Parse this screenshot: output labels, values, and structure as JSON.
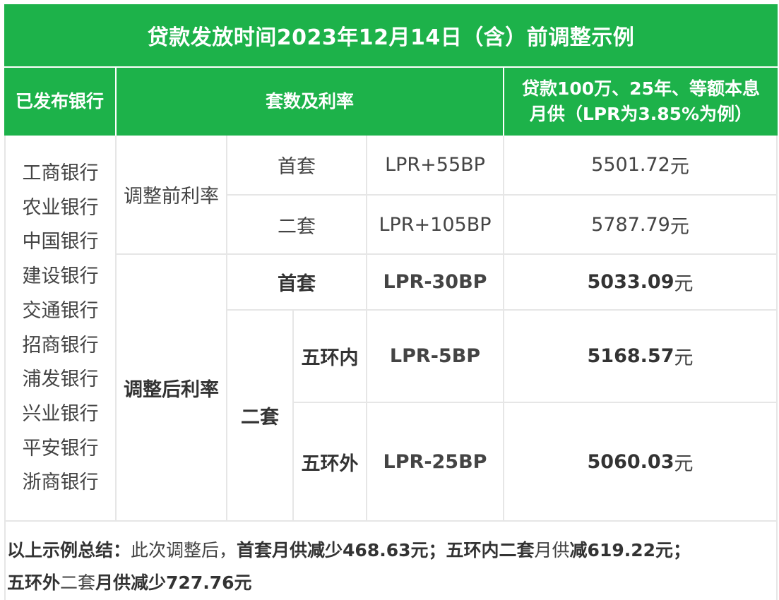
{
  "table": {
    "title": "贷款发放时间2023年12月14日（含）前调整示例",
    "headers": {
      "banks": "已发布银行",
      "rate": "套数及利率",
      "payment_line1": "贷款100万、25年、等额本息",
      "payment_line2": "月供（LPR为3.85%为例）"
    },
    "banks": [
      "工商银行",
      "农业银行",
      "中国银行",
      "建设银行",
      "交通银行",
      "招商银行",
      "浦发银行",
      "兴业银行",
      "平安银行",
      "浙商银行"
    ],
    "before": {
      "label": "调整前利率",
      "rows": [
        {
          "type": "首套",
          "rate": "LPR+55BP",
          "payment": "5501.72",
          "unit": "元"
        },
        {
          "type": "二套",
          "rate": "LPR+105BP",
          "payment": "5787.79",
          "unit": "元"
        }
      ]
    },
    "after": {
      "label": "调整后利率",
      "first": {
        "type": "首套",
        "rate": "LPR-30BP",
        "payment": "5033.09",
        "unit": "元"
      },
      "second_label": "二套",
      "second": [
        {
          "zone": "五环内",
          "rate": "LPR-5BP",
          "payment": "5168.57",
          "unit": "元"
        },
        {
          "zone": "五环外",
          "rate": "LPR-25BP",
          "payment": "5060.03",
          "unit": "元"
        }
      ]
    }
  },
  "summary": {
    "line1": [
      {
        "text": "以上示例总结：",
        "bold": true
      },
      {
        "text": "此次调整后，",
        "bold": false
      },
      {
        "text": "首套月供减少468.63元；",
        "bold": true
      },
      {
        "text": "五环内二套",
        "bold": true
      },
      {
        "text": "月供",
        "bold": false
      },
      {
        "text": "减619.22元；",
        "bold": true
      }
    ],
    "line2": [
      {
        "text": "五环外",
        "bold": true
      },
      {
        "text": "二套",
        "bold": false
      },
      {
        "text": "月供减少727.76元",
        "bold": true
      }
    ]
  },
  "colors": {
    "header_green": "#1db24a",
    "grid": "#e6e6e6"
  }
}
